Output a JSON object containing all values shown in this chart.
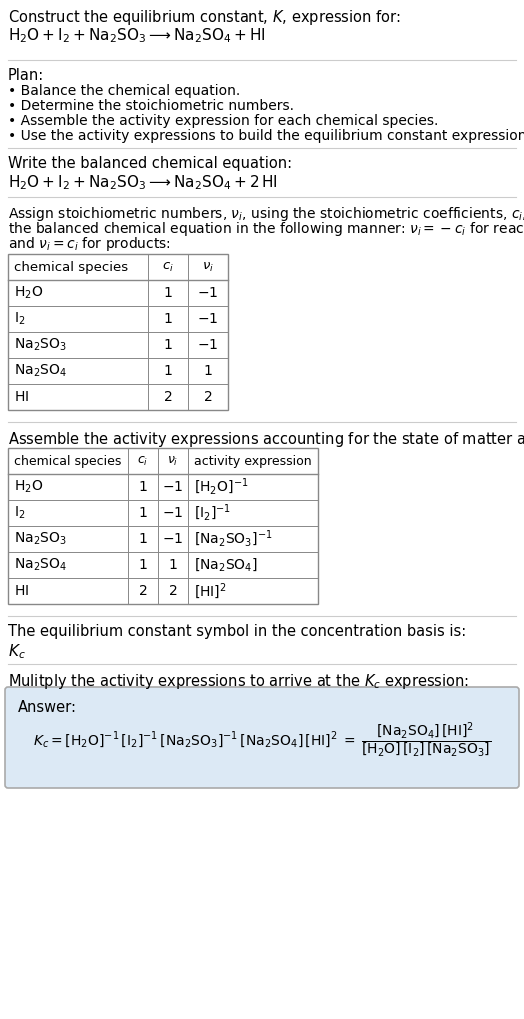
{
  "title_line1": "Construct the equilibrium constant, $K$, expression for:",
  "title_line2": "$\\mathrm{H_2O + I_2 + Na_2SO_3 \\longrightarrow Na_2SO_4 + HI}$",
  "plan_header": "Plan:",
  "plan_items": [
    "\\textbullet  Balance the chemical equation.",
    "\\textbullet  Determine the stoichiometric numbers.",
    "\\textbullet  Assemble the activity expression for each chemical species.",
    "\\textbullet  Use the activity expressions to build the equilibrium constant expression."
  ],
  "balanced_header": "Write the balanced chemical equation:",
  "balanced_eq": "$\\mathrm{H_2O + I_2 + Na_2SO_3 \\longrightarrow Na_2SO_4 + 2\\,HI}$",
  "stoich_header": "Assign stoichiometric numbers, $\\nu_i$, using the stoichiometric coefficients, $c_i$, from\nthe balanced chemical equation in the following manner: $\\nu_i = -c_i$ for reactants\nand $\\nu_i = c_i$ for products:",
  "table1_cols": [
    "chemical species",
    "$c_i$",
    "$\\nu_i$"
  ],
  "table1_data": [
    [
      "$\\mathrm{H_2O}$",
      "1",
      "$-1$"
    ],
    [
      "$\\mathrm{I_2}$",
      "1",
      "$-1$"
    ],
    [
      "$\\mathrm{Na_2SO_3}$",
      "1",
      "$-1$"
    ],
    [
      "$\\mathrm{Na_2SO_4}$",
      "1",
      "$1$"
    ],
    [
      "$\\mathrm{HI}$",
      "2",
      "$2$"
    ]
  ],
  "activity_header": "Assemble the activity expressions accounting for the state of matter and $\\nu_i$:",
  "table2_cols": [
    "chemical species",
    "$c_i$",
    "$\\nu_i$",
    "activity expression"
  ],
  "table2_data": [
    [
      "$\\mathrm{H_2O}$",
      "1",
      "$-1$",
      "$[\\mathrm{H_2O}]^{-1}$"
    ],
    [
      "$\\mathrm{I_2}$",
      "1",
      "$-1$",
      "$[\\mathrm{I_2}]^{-1}$"
    ],
    [
      "$\\mathrm{Na_2SO_3}$",
      "1",
      "$-1$",
      "$[\\mathrm{Na_2SO_3}]^{-1}$"
    ],
    [
      "$\\mathrm{Na_2SO_4}$",
      "1",
      "$1$",
      "$[\\mathrm{Na_2SO_4}]$"
    ],
    [
      "$\\mathrm{HI}$",
      "2",
      "$2$",
      "$[\\mathrm{HI}]^2$"
    ]
  ],
  "kc_symbol_header": "The equilibrium constant symbol in the concentration basis is:",
  "kc_symbol": "$K_c$",
  "multiply_header": "Mulitply the activity expressions to arrive at the $K_c$ expression:",
  "answer_label": "Answer:",
  "kc_expr_line1": "$K_c = [\\mathrm{H_2O}]^{-1}\\,[\\mathrm{I_2}]^{-1}\\,[\\mathrm{Na_2SO_3}]^{-1}\\,[\\mathrm{Na_2SO_4}]\\,[\\mathrm{HI}]^2$",
  "kc_expr_frac_num": "$[\\mathrm{Na_2SO_4}]\\,[\\mathrm{HI}]^2$",
  "kc_expr_frac_den": "$[\\mathrm{H_2O}]\\,[\\mathrm{I_2}]\\,[\\mathrm{Na_2SO_3}]$",
  "bg_color": "#ffffff",
  "text_color": "#000000",
  "table_border_color": "#888888",
  "answer_bg_color": "#dce9f5",
  "answer_border_color": "#aaaaaa",
  "section_line_color": "#cccccc"
}
